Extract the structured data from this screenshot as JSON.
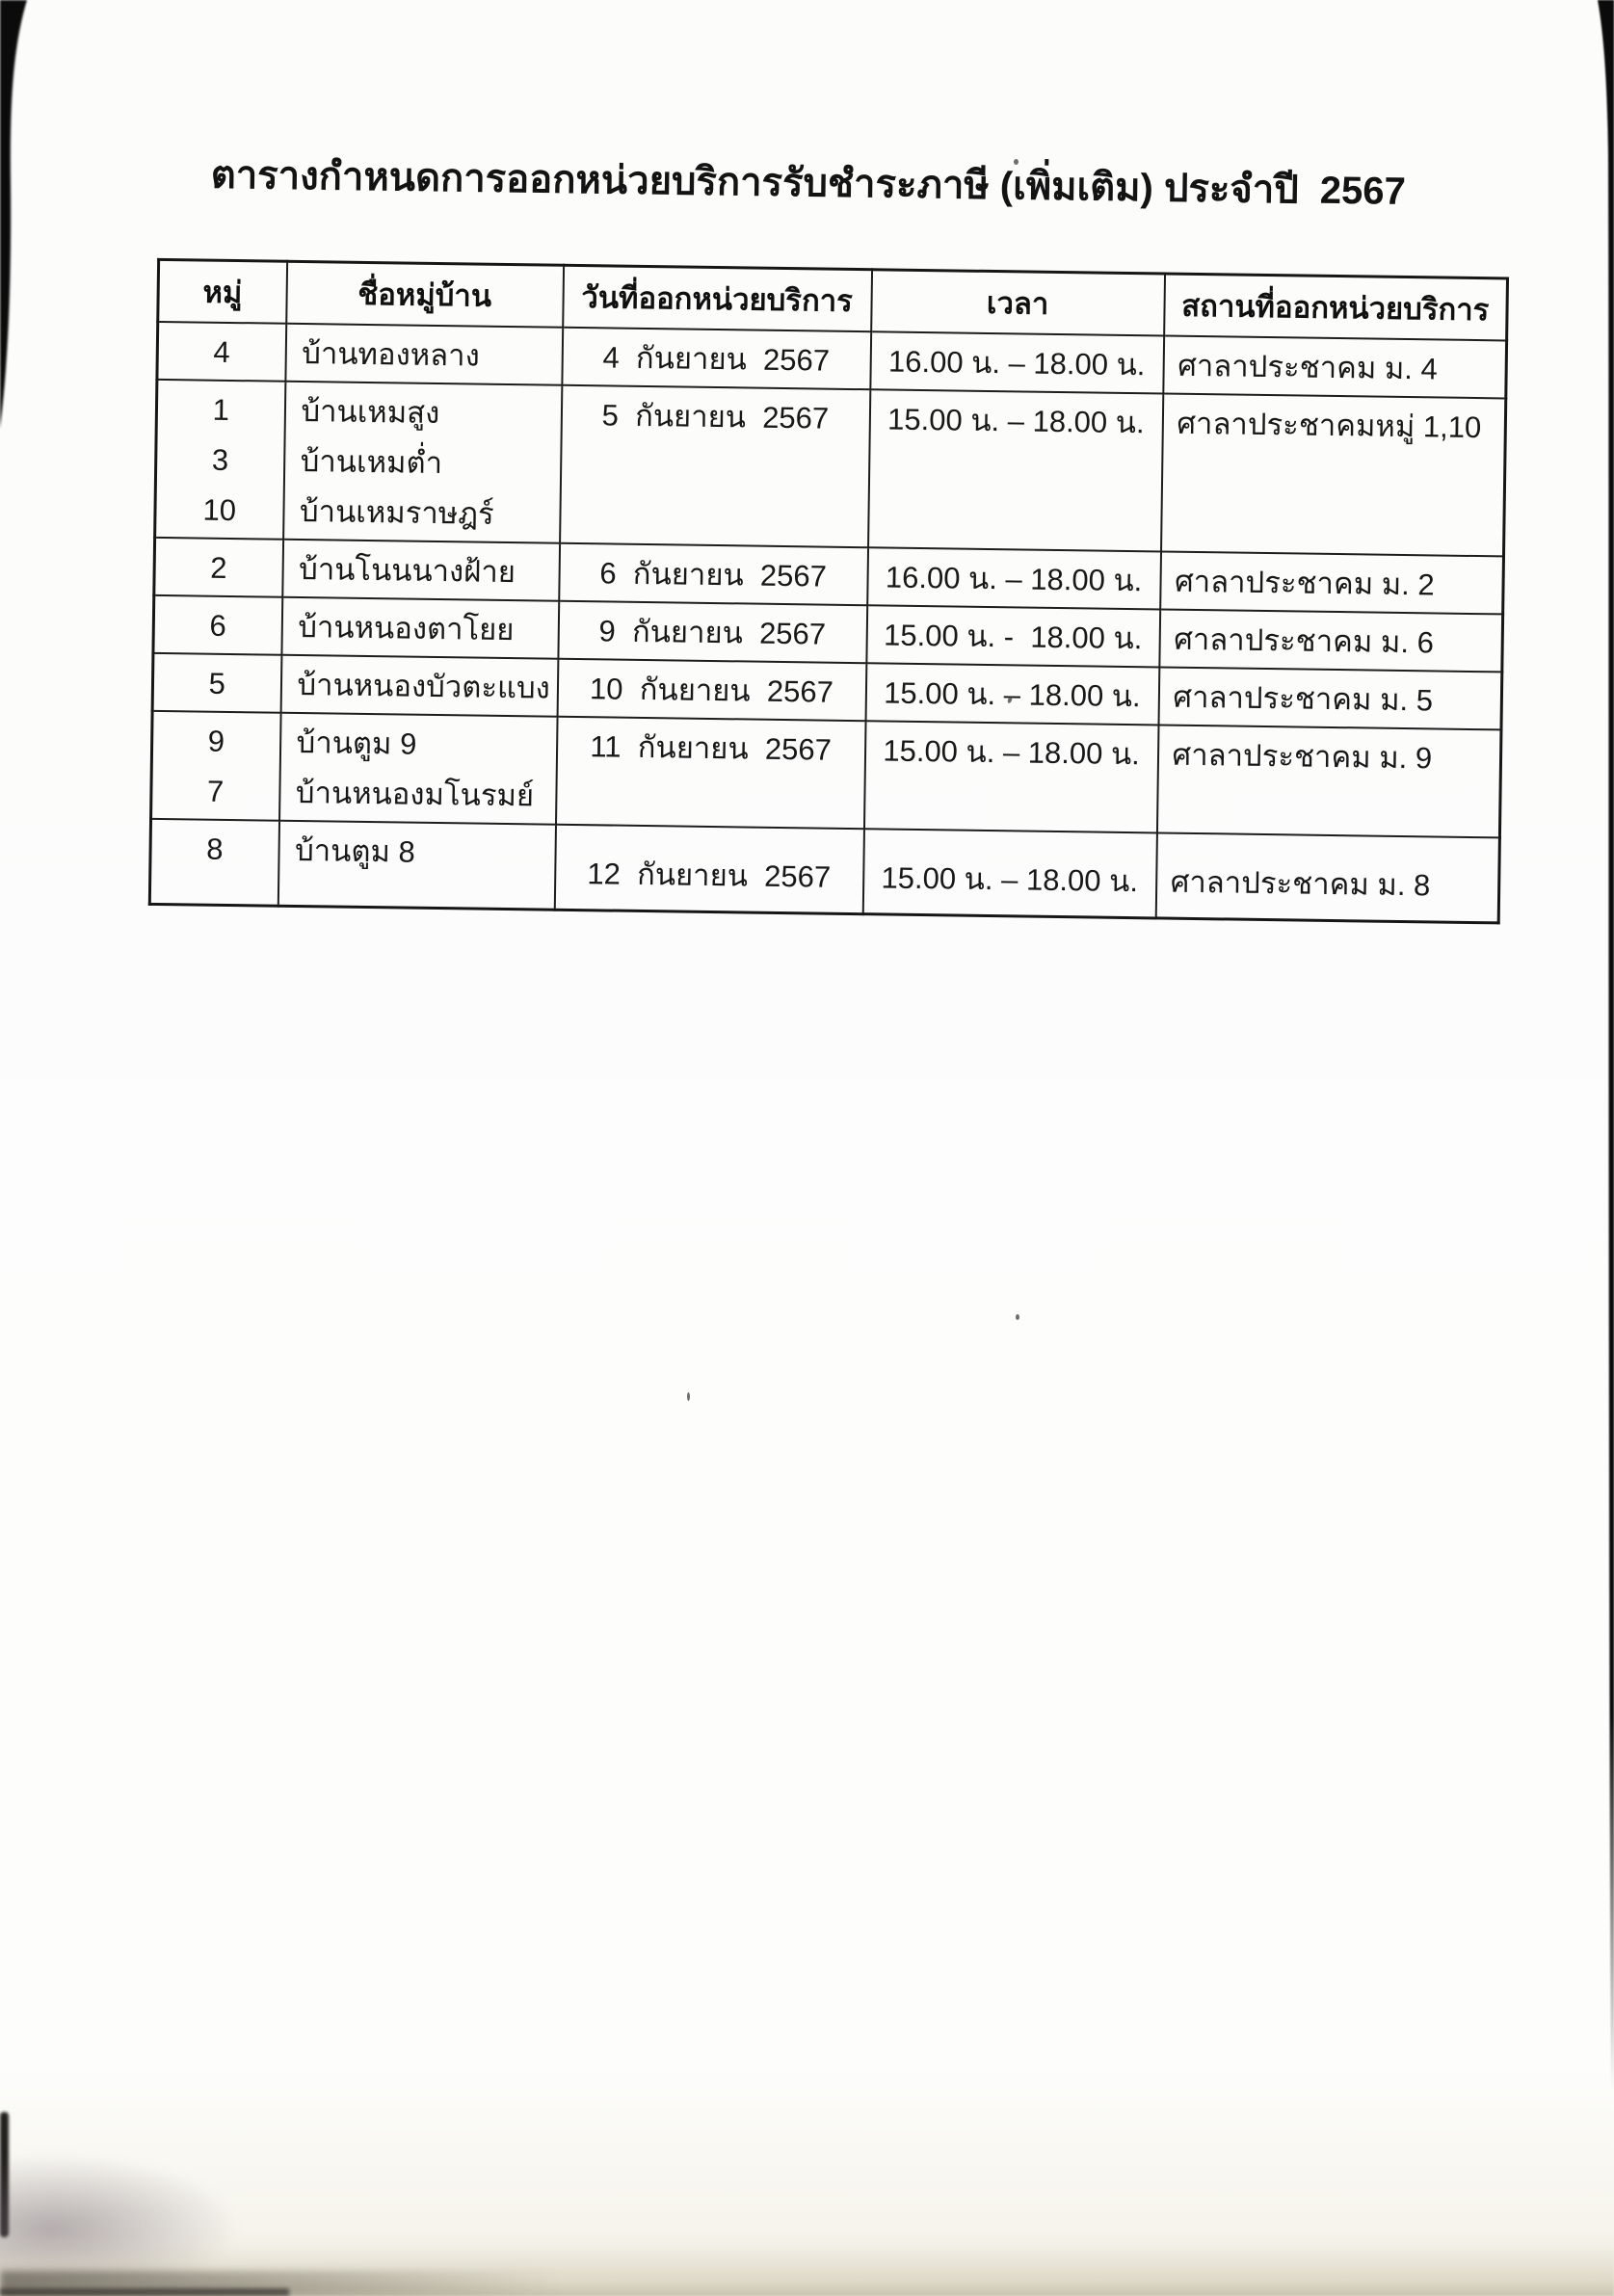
{
  "page": {
    "title": "ตารางกำหนดการออกหน่วยบริการรับชำระภาษี (เพิ่มเติม) ประจำปี  2567"
  },
  "table": {
    "headers": [
      "หมู่",
      "ชื่อหมู่บ้าน",
      "วันที่ออกหน่วยบริการ",
      "เวลา",
      "สถานที่ออกหน่วยบริการ"
    ],
    "rows": [
      {
        "moo": [
          "4"
        ],
        "villages": [
          "บ้านทองหลาง"
        ],
        "date": "4  กันยายน  2567",
        "time": "16.00 น. – 18.00 น.",
        "location": "ศาลาประชาคม ม. 4"
      },
      {
        "moo": [
          "1",
          "3",
          "10"
        ],
        "villages": [
          "บ้านเหมสูง",
          "บ้านเหมต่ำ",
          "บ้านเหมราษฎร์"
        ],
        "date": "5  กันยายน  2567",
        "time": "15.00 น. – 18.00 น.",
        "location": "ศาลาประชาคมหมู่ 1,10"
      },
      {
        "moo": [
          "2"
        ],
        "villages": [
          "บ้านโนนนางฝ้าย"
        ],
        "date": "6  กันยายน  2567",
        "time": "16.00 น. – 18.00 น.",
        "location": "ศาลาประชาคม ม. 2"
      },
      {
        "moo": [
          "6"
        ],
        "villages": [
          "บ้านหนองตาโยย"
        ],
        "date": "9  กันยายน  2567",
        "time": "15.00 น. -  18.00 น.",
        "location": "ศาลาประชาคม ม. 6"
      },
      {
        "moo": [
          "5"
        ],
        "villages": [
          "บ้านหนองบัวตะแบง"
        ],
        "date": "10  กันยายน  2567",
        "time": "15.00 น. – 18.00 น.",
        "location": "ศาลาประชาคม ม. 5"
      },
      {
        "moo": [
          "9",
          "7"
        ],
        "villages": [
          "บ้านตูม 9",
          "บ้านหนองมโนรมย์"
        ],
        "date": "11  กันยายน  2567",
        "time": "15.00 น. – 18.00 น.",
        "location": "ศาลาประชาคม ม. 9"
      },
      {
        "moo": [
          "8"
        ],
        "villages": [
          "บ้านตูม 8"
        ],
        "date": "12  กันยายน  2567",
        "time": "15.00 น. – 18.00 น.",
        "location": "ศาลาประชาคม ม. 8"
      }
    ]
  }
}
